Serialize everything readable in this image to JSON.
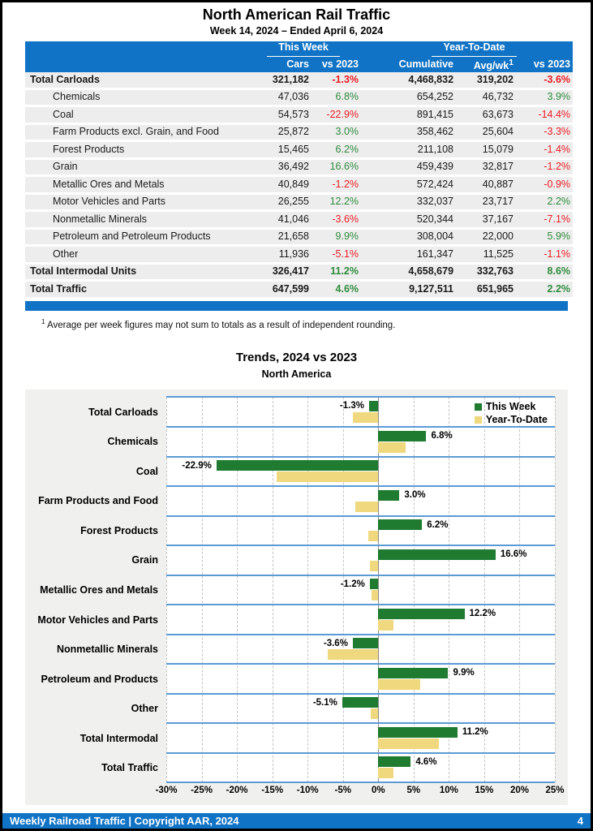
{
  "colors": {
    "accent_blue": "#1073C5",
    "separator_blue": "#5B9BD5",
    "bar_green": "#1E7B2F",
    "bar_yellow": "#F0D87E",
    "text_positive_green": "#2E8B3C",
    "text_negative_red": "#EC1C24",
    "row_band_gray": "#EDEDED",
    "chart_bg_gray": "#F0F0EE"
  },
  "header": {
    "title": "North American Rail Traffic",
    "subtitle": "Week 14, 2024 – Ended April 6, 2024"
  },
  "table": {
    "group_week": "This Week",
    "group_ytd": "Year-To-Date",
    "col_cars": "Cars",
    "col_vs2023_week": "vs 2023",
    "col_cumulative": "Cumulative",
    "col_avgwk": "Avg/wk",
    "col_avgwk_sup": "1",
    "col_vs2023_ytd": "vs 2023",
    "rows": [
      {
        "label": "Total Carloads",
        "bold": true,
        "indent": false,
        "cars": "321,182",
        "wk_vs_2023": "-1.3%",
        "cumulative": "4,468,832",
        "avg_wk": "319,202",
        "ytd_vs_2023": "-3.6%"
      },
      {
        "label": "Chemicals",
        "bold": false,
        "indent": true,
        "cars": "47,036",
        "wk_vs_2023": "6.8%",
        "cumulative": "654,252",
        "avg_wk": "46,732",
        "ytd_vs_2023": "3.9%"
      },
      {
        "label": "Coal",
        "bold": false,
        "indent": true,
        "cars": "54,573",
        "wk_vs_2023": "-22.9%",
        "cumulative": "891,415",
        "avg_wk": "63,673",
        "ytd_vs_2023": "-14.4%"
      },
      {
        "label": "Farm Products excl. Grain, and Food",
        "bold": false,
        "indent": true,
        "cars": "25,872",
        "wk_vs_2023": "3.0%",
        "cumulative": "358,462",
        "avg_wk": "25,604",
        "ytd_vs_2023": "-3.3%"
      },
      {
        "label": "Forest Products",
        "bold": false,
        "indent": true,
        "cars": "15,465",
        "wk_vs_2023": "6.2%",
        "cumulative": "211,108",
        "avg_wk": "15,079",
        "ytd_vs_2023": "-1.4%"
      },
      {
        "label": "Grain",
        "bold": false,
        "indent": true,
        "cars": "36,492",
        "wk_vs_2023": "16.6%",
        "cumulative": "459,439",
        "avg_wk": "32,817",
        "ytd_vs_2023": "-1.2%"
      },
      {
        "label": "Metallic Ores and Metals",
        "bold": false,
        "indent": true,
        "cars": "40,849",
        "wk_vs_2023": "-1.2%",
        "cumulative": "572,424",
        "avg_wk": "40,887",
        "ytd_vs_2023": "-0.9%"
      },
      {
        "label": "Motor Vehicles and Parts",
        "bold": false,
        "indent": true,
        "cars": "26,255",
        "wk_vs_2023": "12.2%",
        "cumulative": "332,037",
        "avg_wk": "23,717",
        "ytd_vs_2023": "2.2%"
      },
      {
        "label": "Nonmetallic Minerals",
        "bold": false,
        "indent": true,
        "cars": "41,046",
        "wk_vs_2023": "-3.6%",
        "cumulative": "520,344",
        "avg_wk": "37,167",
        "ytd_vs_2023": "-7.1%"
      },
      {
        "label": "Petroleum and Petroleum Products",
        "bold": false,
        "indent": true,
        "cars": "21,658",
        "wk_vs_2023": "9.9%",
        "cumulative": "308,004",
        "avg_wk": "22,000",
        "ytd_vs_2023": "5.9%"
      },
      {
        "label": "Other",
        "bold": false,
        "indent": true,
        "cars": "11,936",
        "wk_vs_2023": "-5.1%",
        "cumulative": "161,347",
        "avg_wk": "11,525",
        "ytd_vs_2023": "-1.1%"
      },
      {
        "label": "Total Intermodal Units",
        "bold": true,
        "indent": false,
        "cars": "326,417",
        "wk_vs_2023": "11.2%",
        "cumulative": "4,658,679",
        "avg_wk": "332,763",
        "ytd_vs_2023": "8.6%"
      },
      {
        "label": "Total Traffic",
        "bold": true,
        "indent": false,
        "cars": "647,599",
        "wk_vs_2023": "4.6%",
        "cumulative": "9,127,511",
        "avg_wk": "651,965",
        "ytd_vs_2023": "2.2%"
      }
    ]
  },
  "footnote": {
    "sup": "1",
    "text": " Average per week figures may not sum to totals as a result of independent rounding."
  },
  "chart_data": {
    "type": "bar",
    "orientation": "horizontal",
    "title": "Trends, 2024 vs 2023",
    "subtitle": "North America",
    "categories": [
      "Total Carloads",
      "Chemicals",
      "Coal",
      "Farm Products and Food",
      "Forest Products",
      "Grain",
      "Metallic Ores and Metals",
      "Motor Vehicles and Parts",
      "Nonmetallic Minerals",
      "Petroleum and Products",
      "Other",
      "Total Intermodal",
      "Total Traffic"
    ],
    "series": [
      {
        "name": "This Week",
        "color": "#1E7B2F",
        "values": [
          -1.3,
          6.8,
          -22.9,
          3.0,
          6.2,
          16.6,
          -1.2,
          12.2,
          -3.6,
          9.9,
          -5.1,
          11.2,
          4.6
        ]
      },
      {
        "name": "Year-To-Date",
        "color": "#F0D87E",
        "values": [
          -3.6,
          3.9,
          -14.4,
          -3.3,
          -1.4,
          -1.2,
          -0.9,
          2.2,
          -7.1,
          5.9,
          -1.1,
          8.6,
          2.2
        ]
      }
    ],
    "bar_labels": [
      "-1.3%",
      "6.8%",
      "-22.9%",
      "3.0%",
      "6.2%",
      "16.6%",
      "-1.2%",
      "12.2%",
      "-3.6%",
      "9.9%",
      "-5.1%",
      "11.2%",
      "4.6%"
    ],
    "xlim": [
      -30,
      25
    ],
    "x_tick_step": 5,
    "x_tick_labels": [
      "-30%",
      "-25%",
      "-20%",
      "-15%",
      "-10%",
      "-5%",
      "0%",
      "5%",
      "10%",
      "15%",
      "20%",
      "25%"
    ],
    "legend_position": "top-right",
    "grid": "dashed vertical every 5%, solid blue row separators"
  },
  "footer": {
    "text": "Weekly Railroad Traffic | Copyright AAR, 2024",
    "page": "4"
  }
}
